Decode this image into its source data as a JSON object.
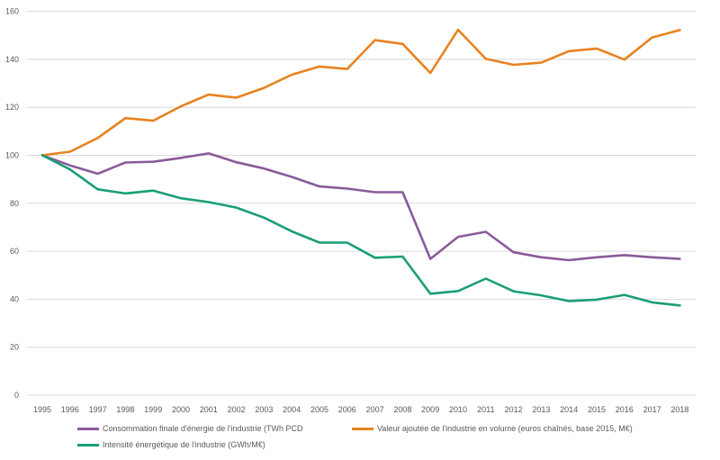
{
  "chart_data": {
    "type": "line",
    "x": [
      "1995",
      "1996",
      "1997",
      "1998",
      "1999",
      "2000",
      "2001",
      "2002",
      "2003",
      "2004",
      "2005",
      "2006",
      "2007",
      "2008",
      "2009",
      "2010",
      "2011",
      "2012",
      "2013",
      "2014",
      "2015",
      "2016",
      "2017",
      "2018"
    ],
    "ylim": [
      0,
      160
    ],
    "yticks": [
      0,
      20,
      40,
      60,
      80,
      100,
      120,
      140,
      160
    ],
    "grid": "horizontal",
    "legend_position": "bottom",
    "series": [
      {
        "name": "Consommation finale d'énergie de l'industrie (TWh PCD",
        "color": "#8a5a9b",
        "values": [
          100,
          95.8,
          92.3,
          97,
          97.3,
          98.9,
          100.8,
          97.1,
          94.5,
          91,
          87,
          86.1,
          84.6,
          84.6,
          56.8,
          66,
          68.1,
          59.6,
          57.5,
          56.3,
          57.5,
          58.4,
          57.5,
          56.8
        ]
      },
      {
        "name": "Valeur ajoutée de l'industrie en volume (euros chaînés, base 2015, M€)",
        "color": "#e8821f",
        "values": [
          100,
          101.5,
          107.2,
          115.5,
          114.4,
          120.4,
          125.3,
          124,
          128.1,
          133.6,
          137,
          136,
          148,
          146.4,
          134.3,
          152.3,
          140.2,
          137.7,
          138.6,
          143.4,
          144.5,
          139.9,
          149.1,
          152.2
        ]
      },
      {
        "name": "Intensité énergétique de l'industrie (GWh/M€)",
        "color": "#1a9e78",
        "values": [
          100,
          94.1,
          85.8,
          84.1,
          85.3,
          82.1,
          80.5,
          78.2,
          74,
          68.3,
          63.6,
          63.6,
          57.3,
          57.8,
          42.3,
          43.4,
          48.6,
          43.3,
          41.6,
          39.2,
          39.8,
          41.8,
          38.7,
          37.4
        ]
      }
    ]
  }
}
